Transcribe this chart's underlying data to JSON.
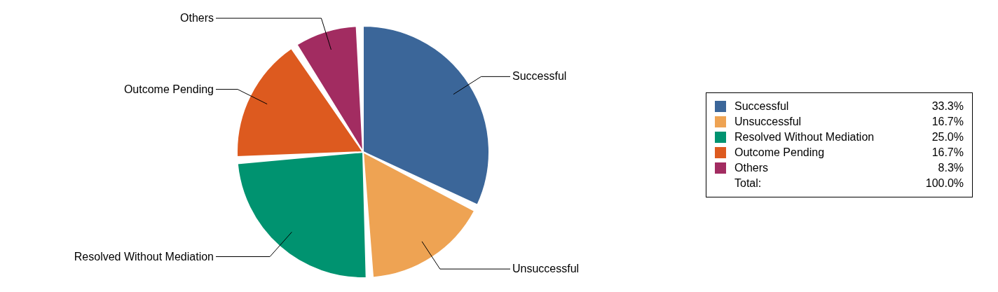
{
  "chart_data": {
    "type": "pie",
    "categories": [
      "Successful",
      "Unsuccessful",
      "Resolved Without Mediation",
      "Outcome Pending",
      "Others"
    ],
    "values": [
      33.3,
      16.7,
      25.0,
      16.7,
      8.3
    ],
    "colors": [
      "#3b6699",
      "#eea353",
      "#009370",
      "#dd5a1f",
      "#a22c61"
    ],
    "value_labels": [
      "33.3%",
      "16.7%",
      "25.0%",
      "16.7%",
      "8.3%"
    ],
    "annotations": [
      "Total:",
      "100.0%"
    ],
    "legend": "right"
  }
}
